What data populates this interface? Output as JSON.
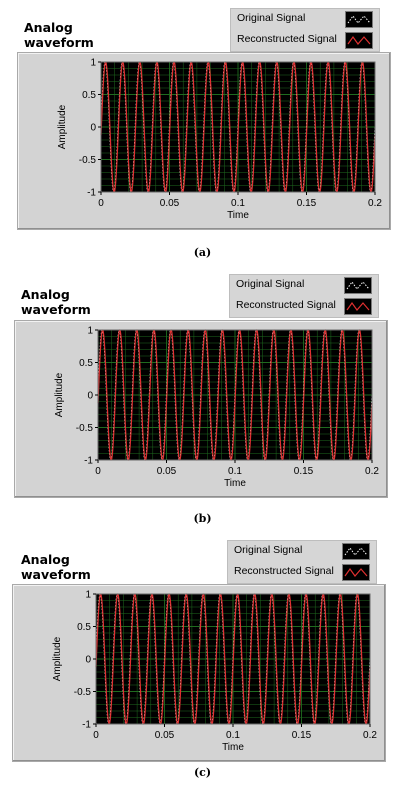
{
  "colors": {
    "plot_background": "#000000",
    "grid": "#1f6b1f",
    "original_signal": "#ffffff",
    "reconstructed_signal": "#e03030",
    "frame": "#d3d3d3"
  },
  "chart_data": [
    {
      "caption": "(a)",
      "type": "line",
      "title": "Analog\nwaveform",
      "title_lines": [
        "Analog",
        "waveform"
      ],
      "legend": {
        "original": "Original Signal",
        "reconstructed": "Reconstructed Signal"
      },
      "xlabel": "Time",
      "ylabel": "Amplitude",
      "xlim": [
        0,
        0.2
      ],
      "ylim": [
        -1,
        1
      ],
      "xticks": [
        "0",
        "0.05",
        "0.1",
        "0.15",
        "0.2"
      ],
      "yticks": [
        "1",
        "0.5",
        "0",
        "-0.5",
        "-1"
      ],
      "grid": true,
      "series": [
        {
          "name": "Original Signal",
          "frequency_hz": 80,
          "amplitude": 1,
          "style": "dotted"
        },
        {
          "name": "Reconstructed Signal",
          "frequency_hz": 80,
          "amplitude": 1,
          "style": "solid"
        }
      ]
    },
    {
      "caption": "(b)",
      "type": "line",
      "title_lines": [
        "Analog",
        "waveform"
      ],
      "legend": {
        "original": "Original Signal",
        "reconstructed": "Reconstructed Signal"
      },
      "xlabel": "Time",
      "ylabel": "Amplitude",
      "xlim": [
        0,
        0.2
      ],
      "ylim": [
        -1,
        1
      ],
      "xticks": [
        "0",
        "0.05",
        "0.1",
        "0.15",
        "0.2"
      ],
      "yticks": [
        "1",
        "0.5",
        "0",
        "-0.5",
        "-1"
      ],
      "grid": true,
      "series": [
        {
          "name": "Original Signal",
          "frequency_hz": 80,
          "amplitude": 1,
          "style": "dotted"
        },
        {
          "name": "Reconstructed Signal",
          "frequency_hz": 80,
          "amplitude": 1,
          "style": "solid"
        }
      ]
    },
    {
      "caption": "(c)",
      "type": "line",
      "title_lines": [
        "Analog",
        "waveform"
      ],
      "legend": {
        "original": "Original Signal",
        "reconstructed": "Reconstructed Signal"
      },
      "xlabel": "Time",
      "ylabel": "Amplitude",
      "xlim": [
        0,
        0.2
      ],
      "ylim": [
        -1,
        1
      ],
      "xticks": [
        "0",
        "0.05",
        "0.1",
        "0.15",
        "0.2"
      ],
      "yticks": [
        "1",
        "0.5",
        "0",
        "-0.5",
        "-1"
      ],
      "grid": true,
      "series": [
        {
          "name": "Original Signal",
          "frequency_hz": 80,
          "amplitude": 1,
          "style": "dotted"
        },
        {
          "name": "Reconstructed Signal",
          "frequency_hz": 80,
          "amplitude": 1,
          "style": "solid"
        }
      ]
    }
  ]
}
